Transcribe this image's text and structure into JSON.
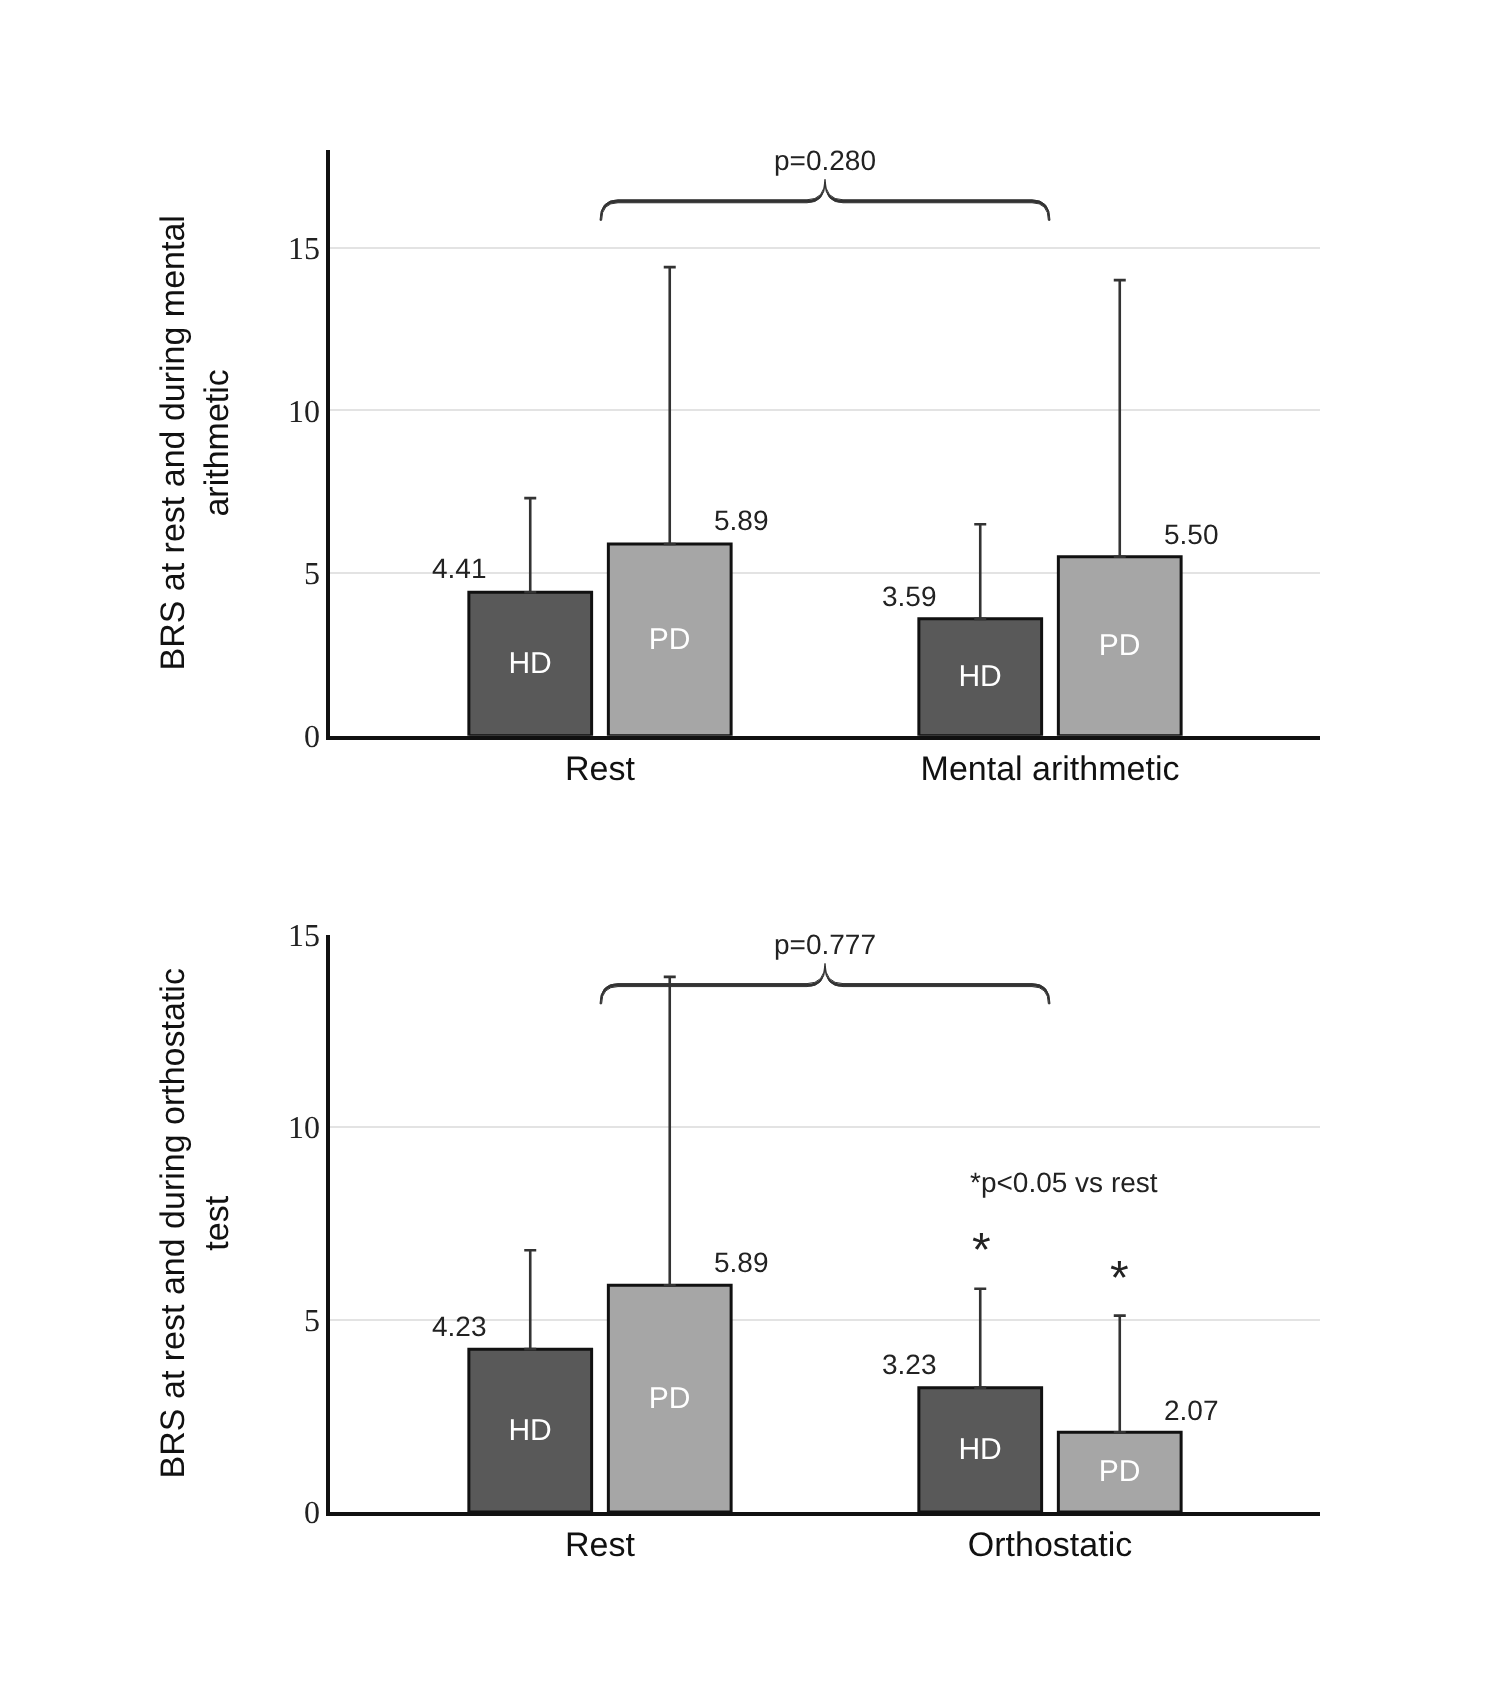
{
  "chart_data": [
    {
      "type": "bar",
      "ylabel": "BRS at rest and during mental arithmetic",
      "categories": [
        "Rest",
        "Mental arithmetic"
      ],
      "series": [
        {
          "name": "HD",
          "color": "#595959",
          "values": [
            4.41,
            3.59
          ],
          "value_labels": [
            "4.41",
            "3.59"
          ],
          "errors": [
            [
              4.41,
              7.3
            ],
            [
              3.59,
              6.5
            ]
          ]
        },
        {
          "name": "PD",
          "color": "#a6a6a6",
          "values": [
            5.89,
            5.5
          ],
          "value_labels": [
            "5.89",
            "5.50"
          ],
          "errors": [
            [
              5.89,
              14.4
            ],
            [
              5.5,
              14.0
            ]
          ]
        }
      ],
      "ylim": [
        0,
        18
      ],
      "yticks": [
        0,
        5,
        10,
        15
      ],
      "grid": "y",
      "annotations": [
        "p=0.280"
      ]
    },
    {
      "type": "bar",
      "ylabel": "BRS at rest and during orthostatic test",
      "categories": [
        "Rest",
        "Orthostatic"
      ],
      "series": [
        {
          "name": "HD",
          "color": "#595959",
          "values": [
            4.23,
            3.23
          ],
          "value_labels": [
            "4.23",
            "3.23"
          ],
          "errors": [
            [
              4.23,
              6.8
            ],
            [
              3.23,
              5.8
            ]
          ]
        },
        {
          "name": "PD",
          "color": "#a6a6a6",
          "values": [
            5.89,
            2.07
          ],
          "value_labels": [
            "5.89",
            "2.07"
          ],
          "errors": [
            [
              5.89,
              13.9
            ],
            [
              2.07,
              5.1
            ]
          ]
        }
      ],
      "ylim": [
        0,
        15
      ],
      "yticks": [
        0,
        5,
        10,
        15
      ],
      "grid": "y",
      "annotations": [
        "p=0.777",
        "*p<0.05 vs rest",
        "*",
        "*"
      ]
    }
  ]
}
